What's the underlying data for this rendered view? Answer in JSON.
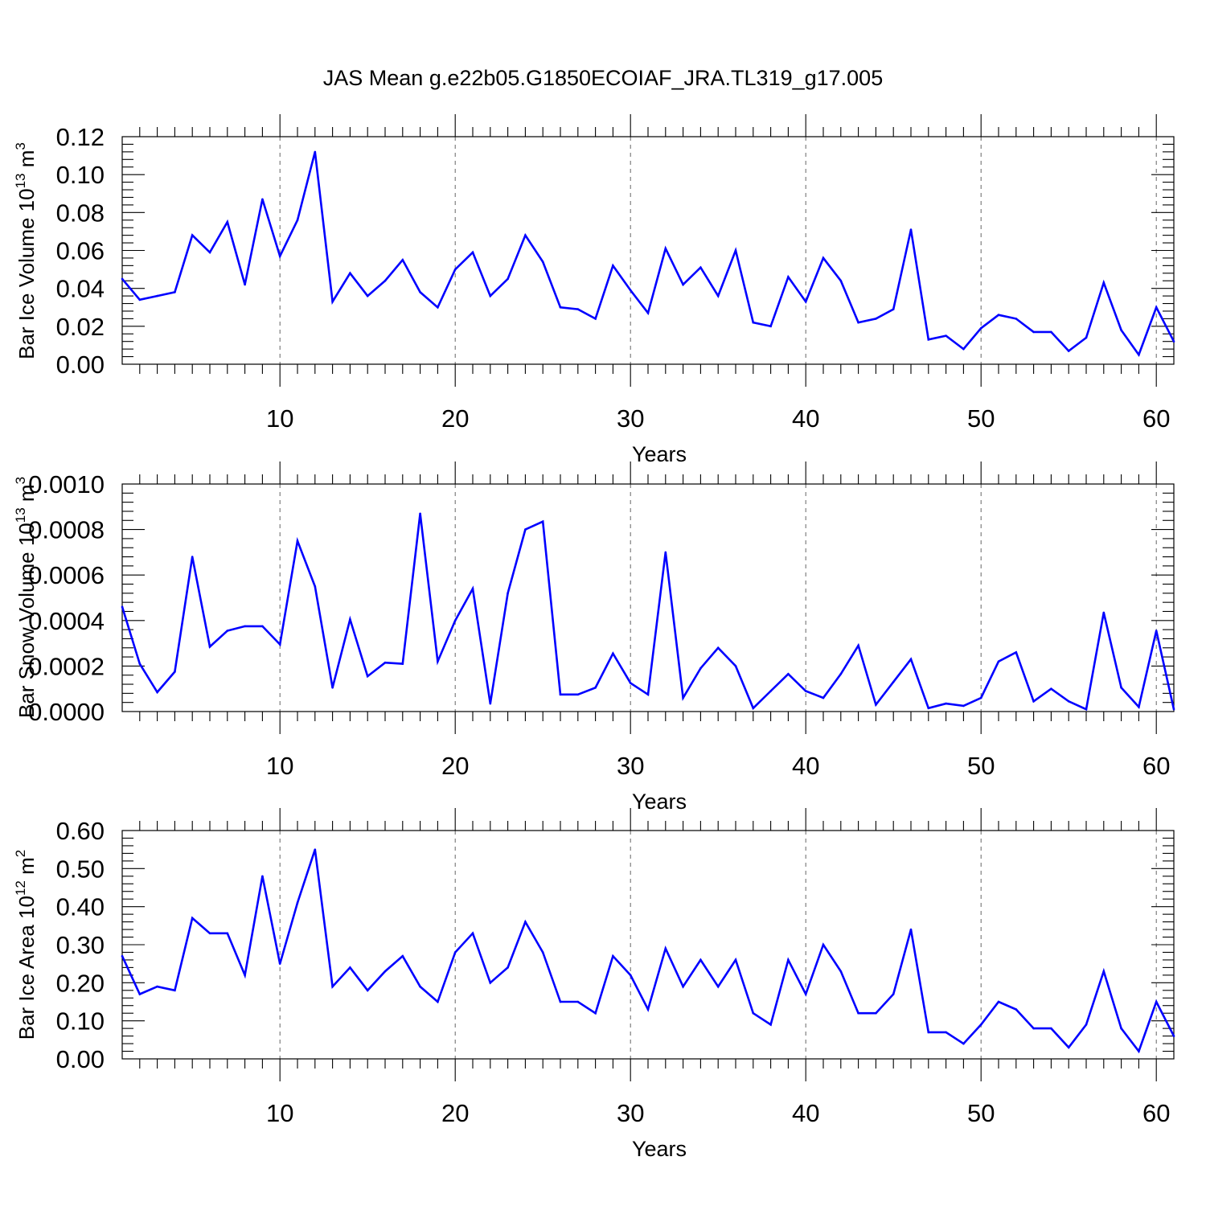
{
  "title": "JAS Mean g.e22b05.G1850ECOIAF_JRA.TL319_g17.005",
  "colors": {
    "series": "#0000ff",
    "grid": "#666666",
    "axis": "#000000"
  },
  "chart_data": [
    {
      "type": "line",
      "title": "JAS Mean g.e22b05.G1850ECOIAF_JRA.TL319_g17.005",
      "xlabel": "Years",
      "ylabel": {
        "main": "Bar Ice Volume 10",
        "sup": "13",
        "unit": " m",
        "unit_sup": "3"
      },
      "xlim": [
        1,
        61
      ],
      "ylim": [
        0,
        0.12
      ],
      "xticks": [
        10,
        20,
        30,
        40,
        50,
        60
      ],
      "yticks": [
        "0.00",
        "0.02",
        "0.04",
        "0.06",
        "0.08",
        "0.10",
        "0.12"
      ],
      "grid": "vertical-dashed",
      "x": [
        1,
        2,
        3,
        4,
        5,
        6,
        7,
        8,
        9,
        10,
        11,
        12,
        13,
        14,
        15,
        16,
        17,
        18,
        19,
        20,
        21,
        22,
        23,
        24,
        25,
        26,
        27,
        28,
        29,
        30,
        31,
        32,
        33,
        34,
        35,
        36,
        37,
        38,
        39,
        40,
        41,
        42,
        43,
        44,
        45,
        46,
        47,
        48,
        49,
        50,
        51,
        52,
        53,
        54,
        55,
        56,
        57,
        58,
        59,
        60,
        61
      ],
      "values": [
        0.045,
        0.034,
        0.036,
        0.038,
        0.068,
        0.059,
        0.075,
        0.042,
        0.087,
        0.057,
        0.076,
        0.112,
        0.033,
        0.048,
        0.036,
        0.044,
        0.055,
        0.038,
        0.03,
        0.05,
        0.059,
        0.036,
        0.045,
        0.068,
        0.054,
        0.03,
        0.029,
        0.024,
        0.052,
        0.039,
        0.027,
        0.061,
        0.042,
        0.051,
        0.036,
        0.06,
        0.022,
        0.02,
        0.046,
        0.033,
        0.056,
        0.044,
        0.022,
        0.024,
        0.029,
        0.071,
        0.013,
        0.015,
        0.008,
        0.019,
        0.026,
        0.024,
        0.017,
        0.017,
        0.007,
        0.014,
        0.043,
        0.018,
        0.005,
        0.03,
        0.012
      ]
    },
    {
      "type": "line",
      "xlabel": "Years",
      "ylabel": {
        "main": "Bar Snow Volume 10",
        "sup": "13",
        "unit": " m",
        "unit_sup": "3"
      },
      "xlim": [
        1,
        61
      ],
      "ylim": [
        0,
        0.001
      ],
      "xticks": [
        10,
        20,
        30,
        40,
        50,
        60
      ],
      "yticks": [
        "0.0000",
        "0.0002",
        "0.0004",
        "0.0006",
        "0.0008",
        "0.0010"
      ],
      "grid": "vertical-dashed",
      "x": [
        1,
        2,
        3,
        4,
        5,
        6,
        7,
        8,
        9,
        10,
        11,
        12,
        13,
        14,
        15,
        16,
        17,
        18,
        19,
        20,
        21,
        22,
        23,
        24,
        25,
        26,
        27,
        28,
        29,
        30,
        31,
        32,
        33,
        34,
        35,
        36,
        37,
        38,
        39,
        40,
        41,
        42,
        43,
        44,
        45,
        46,
        47,
        48,
        49,
        50,
        51,
        52,
        53,
        54,
        55,
        56,
        57,
        58,
        59,
        60,
        61
      ],
      "values": [
        0.00046,
        0.00021,
        8.5e-05,
        0.000175,
        0.00068,
        0.000285,
        0.000355,
        0.000375,
        0.000375,
        0.000295,
        0.00075,
        0.00055,
        0.000105,
        0.000405,
        0.000155,
        0.000215,
        0.00021,
        0.00087,
        0.00022,
        0.0004,
        0.00054,
        3.5e-05,
        0.00052,
        0.0008,
        0.000835,
        7.5e-05,
        7.5e-05,
        0.000105,
        0.000255,
        0.000125,
        7.5e-05,
        0.0007,
        6e-05,
        0.00019,
        0.00028,
        0.0002,
        1.5e-05,
        9e-05,
        0.000165,
        9e-05,
        6e-05,
        0.000165,
        0.00029,
        3e-05,
        0.00013,
        0.00023,
        1.5e-05,
        3.5e-05,
        2.5e-05,
        6e-05,
        0.00022,
        0.00026,
        4.5e-05,
        0.0001,
        4.5e-05,
        1e-05,
        0.000435,
        0.000105,
        2e-05,
        0.000355,
        1e-05
      ]
    },
    {
      "type": "line",
      "xlabel": "Years",
      "ylabel": {
        "main": "Bar Ice Area 10",
        "sup": "12",
        "unit": " m",
        "unit_sup": "2"
      },
      "xlim": [
        1,
        61
      ],
      "ylim": [
        0,
        0.6
      ],
      "xticks": [
        10,
        20,
        30,
        40,
        50,
        60
      ],
      "yticks": [
        "0.00",
        "0.10",
        "0.20",
        "0.30",
        "0.40",
        "0.50",
        "0.60"
      ],
      "grid": "vertical-dashed",
      "x": [
        1,
        2,
        3,
        4,
        5,
        6,
        7,
        8,
        9,
        10,
        11,
        12,
        13,
        14,
        15,
        16,
        17,
        18,
        19,
        20,
        21,
        22,
        23,
        24,
        25,
        26,
        27,
        28,
        29,
        30,
        31,
        32,
        33,
        34,
        35,
        36,
        37,
        38,
        39,
        40,
        41,
        42,
        43,
        44,
        45,
        46,
        47,
        48,
        49,
        50,
        51,
        52,
        53,
        54,
        55,
        56,
        57,
        58,
        59,
        60,
        61
      ],
      "values": [
        0.27,
        0.17,
        0.19,
        0.18,
        0.37,
        0.33,
        0.33,
        0.22,
        0.48,
        0.25,
        0.41,
        0.55,
        0.19,
        0.24,
        0.18,
        0.23,
        0.27,
        0.19,
        0.15,
        0.28,
        0.33,
        0.2,
        0.24,
        0.36,
        0.28,
        0.15,
        0.15,
        0.12,
        0.27,
        0.22,
        0.13,
        0.29,
        0.19,
        0.26,
        0.19,
        0.26,
        0.12,
        0.09,
        0.26,
        0.17,
        0.3,
        0.23,
        0.12,
        0.12,
        0.17,
        0.34,
        0.07,
        0.07,
        0.04,
        0.09,
        0.15,
        0.13,
        0.08,
        0.08,
        0.03,
        0.09,
        0.23,
        0.08,
        0.02,
        0.15,
        0.06
      ]
    }
  ]
}
